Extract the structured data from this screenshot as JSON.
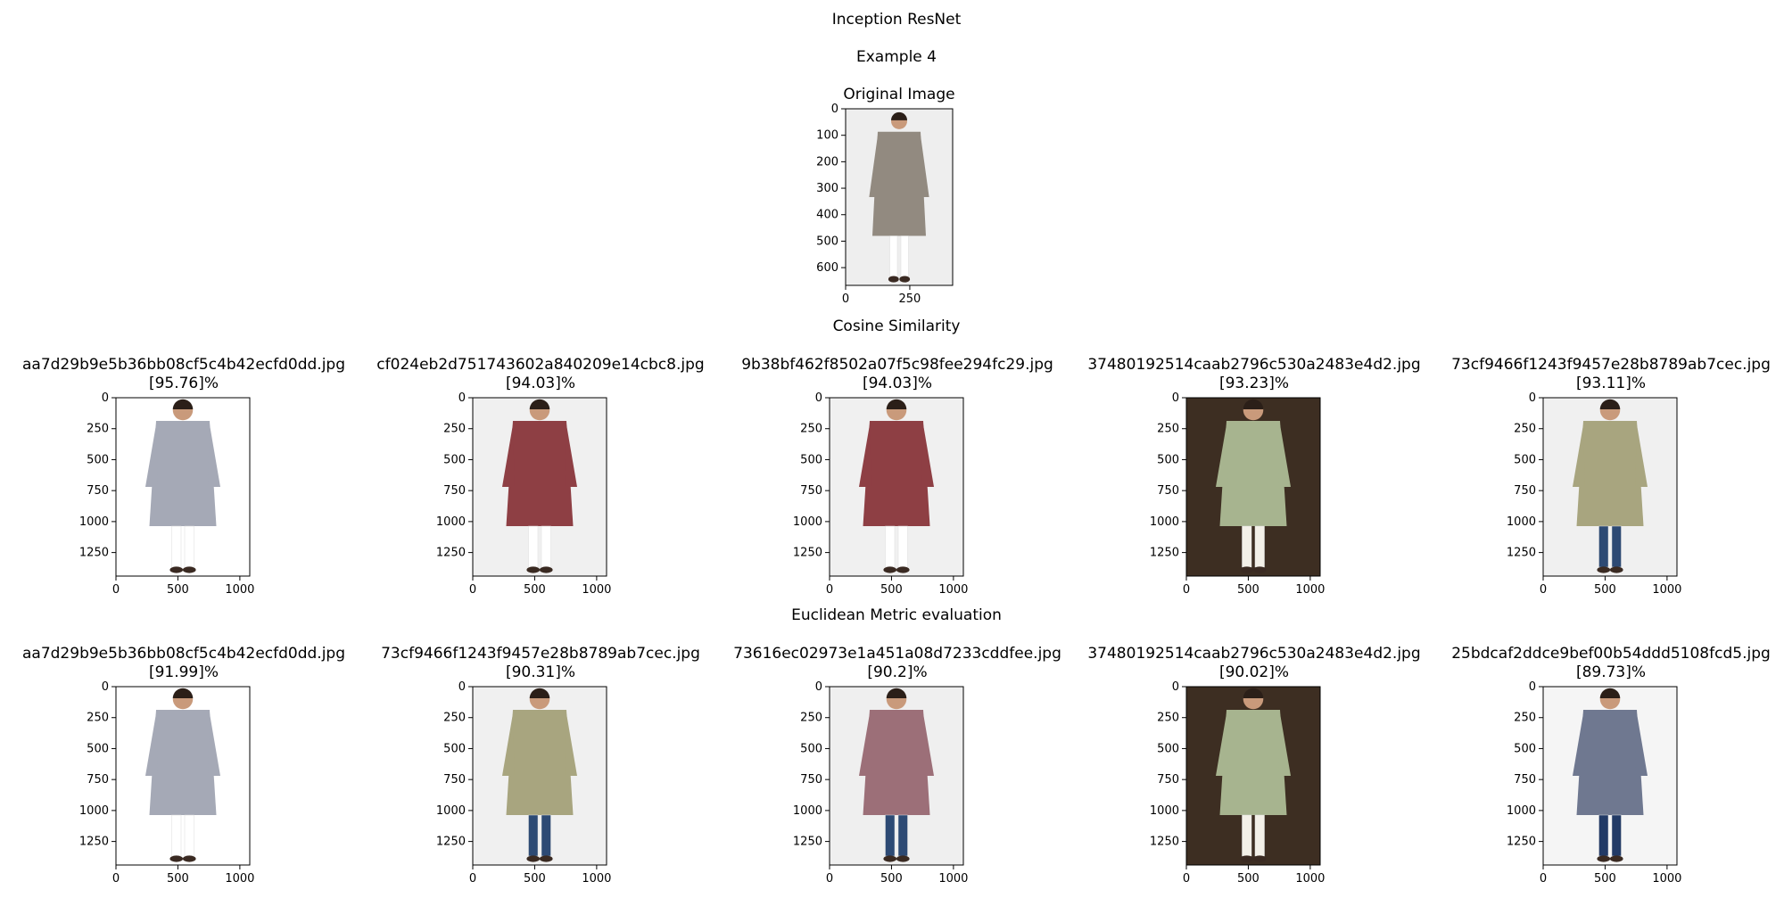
{
  "suptitle": "Inception ResNet",
  "example_label": "Example 4",
  "original": {
    "title": "Original Image",
    "y_ticks": [
      "0",
      "100",
      "200",
      "300",
      "400",
      "500",
      "600"
    ],
    "x_ticks": [
      "0",
      "250"
    ],
    "garment_color": "#928a80",
    "bg_color": "#eeeeee"
  },
  "cosine": {
    "heading": "Cosine Similarity",
    "items": [
      {
        "filename": "aa7d29b9e5b36bb08cf5c4b42ecfd0dd.jpg",
        "score": "[95.76]%",
        "garment_color": "#a5a9b6",
        "bg_color": "#ffffff",
        "pant_color": "#ffffff"
      },
      {
        "filename": "cf024eb2d751743602a840209e14cbc8.jpg",
        "score": "[94.03]%",
        "garment_color": "#8e3f44",
        "bg_color": "#f0f0f0",
        "pant_color": "#ffffff"
      },
      {
        "filename": "9b38bf462f8502a07f5c98fee294fc29.jpg",
        "score": "[94.03]%",
        "garment_color": "#8e3f44",
        "bg_color": "#f0f0f0",
        "pant_color": "#ffffff"
      },
      {
        "filename": "37480192514caab2796c530a2483e4d2.jpg",
        "score": "[93.23]%",
        "garment_color": "#a7b48f",
        "bg_color": "#3d2e22",
        "pant_color": "#f3f0e8"
      },
      {
        "filename": "73cf9466f1243f9457e28b8789ab7cec.jpg",
        "score": "[93.11]%",
        "garment_color": "#a8a57f",
        "bg_color": "#f0f0f0",
        "pant_color": "#2d4a74"
      }
    ]
  },
  "euclidean": {
    "heading": "Euclidean Metric evaluation",
    "items": [
      {
        "filename": "aa7d29b9e5b36bb08cf5c4b42ecfd0dd.jpg",
        "score": "[91.99]%",
        "garment_color": "#a5a9b6",
        "bg_color": "#ffffff",
        "pant_color": "#ffffff"
      },
      {
        "filename": "73cf9466f1243f9457e28b8789ab7cec.jpg",
        "score": "[90.31]%",
        "garment_color": "#a8a57f",
        "bg_color": "#f0f0f0",
        "pant_color": "#2d4a74"
      },
      {
        "filename": "73616ec02973e1a451a08d7233cddfee.jpg",
        "score": "[90.2]%",
        "garment_color": "#9c6f78",
        "bg_color": "#efefef",
        "pant_color": "#2d4a74"
      },
      {
        "filename": "37480192514caab2796c530a2483e4d2.jpg",
        "score": "[90.02]%",
        "garment_color": "#a7b48f",
        "bg_color": "#3d2e22",
        "pant_color": "#f3f0e8"
      },
      {
        "filename": "25bdcaf2ddce9bef00b54ddd5108fcd5.jpg",
        "score": "[89.73]%",
        "garment_color": "#6f7890",
        "bg_color": "#f5f5f5",
        "pant_color": "#223a66"
      }
    ]
  },
  "grid_axis": {
    "y_ticks": [
      "0",
      "250",
      "500",
      "750",
      "1000",
      "1250"
    ],
    "x_ticks": [
      "0",
      "500",
      "1000"
    ]
  }
}
